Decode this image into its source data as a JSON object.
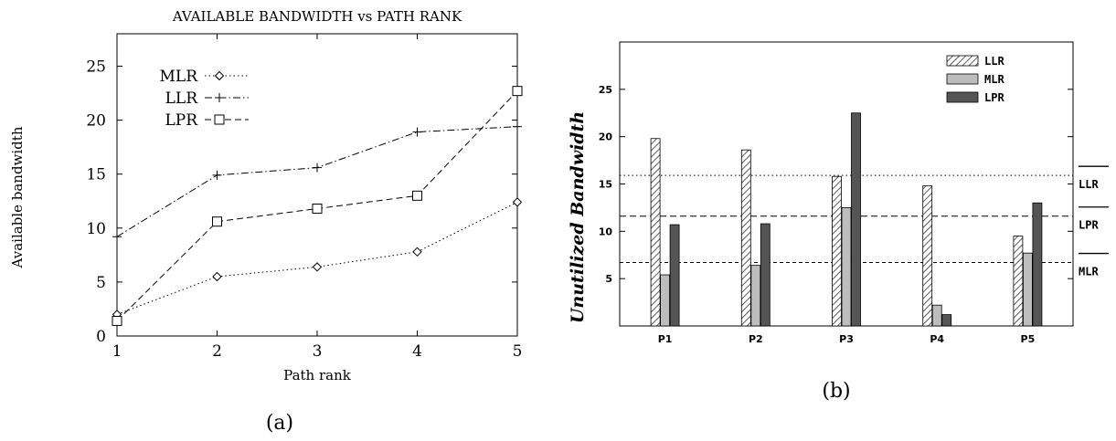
{
  "chart_data": [
    {
      "type": "line",
      "caption": "(a)",
      "title": "AVAILABLE BANDWIDTH vs PATH RANK",
      "xlabel": "Path rank",
      "ylabel": "Available bandwidth",
      "x": [
        1,
        2,
        3,
        4,
        5
      ],
      "xticks": [
        "1",
        "2",
        "3",
        "4",
        "5"
      ],
      "yticks": [
        "0",
        "5",
        "10",
        "15",
        "20",
        "25"
      ],
      "xlim": [
        1,
        5
      ],
      "ylim": [
        0,
        25
      ],
      "legend_position": "top-left",
      "grid": false,
      "series": [
        {
          "name": "MLR",
          "marker": "diamond",
          "dash": "dotted",
          "values": [
            2.0,
            5.5,
            6.4,
            7.8,
            12.4
          ]
        },
        {
          "name": "LLR",
          "marker": "plus",
          "dash": "dash-dot",
          "values": [
            9.2,
            14.9,
            15.6,
            18.9,
            19.4
          ]
        },
        {
          "name": "LPR",
          "marker": "square",
          "dash": "dashed",
          "values": [
            1.4,
            10.6,
            11.8,
            13.0,
            22.7
          ]
        }
      ]
    },
    {
      "type": "bar",
      "caption": "(b)",
      "title": "",
      "xlabel": "",
      "ylabel": "Unutilized Bandwidth",
      "categories": [
        "P1",
        "P2",
        "P3",
        "P4",
        "P5"
      ],
      "yticks": [
        "5",
        "10",
        "15",
        "20",
        "25"
      ],
      "ylim": [
        0,
        30
      ],
      "legend_position": "top-right",
      "grid": false,
      "series": [
        {
          "name": "LLR",
          "fill": "hatched",
          "color": "#ffffff",
          "values": [
            19.8,
            18.6,
            15.8,
            14.8,
            9.5
          ]
        },
        {
          "name": "MLR",
          "fill": "solid",
          "color": "#bdbdbd",
          "values": [
            5.4,
            6.4,
            12.5,
            2.2,
            7.7
          ]
        },
        {
          "name": "LPR",
          "fill": "solid",
          "color": "#555555",
          "values": [
            10.7,
            10.8,
            22.5,
            1.2,
            13.0
          ]
        }
      ],
      "reference_lines": [
        {
          "label": "LLR",
          "value": 15.9,
          "dash": "dotted"
        },
        {
          "label": "LPR",
          "value": 11.6,
          "dash": "dashed"
        },
        {
          "label": "MLR",
          "value": 6.7,
          "dash": "short-dashed"
        }
      ]
    }
  ]
}
